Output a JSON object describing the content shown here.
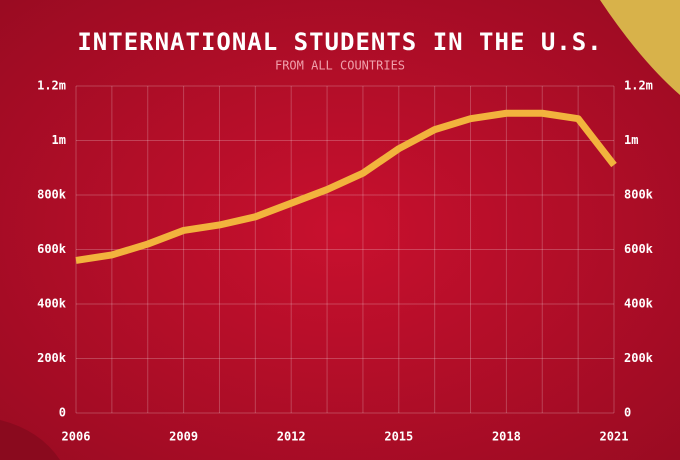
{
  "chart_data": {
    "type": "line",
    "title": "INTERNATIONAL STUDENTS IN THE U.S.",
    "subtitle": "FROM ALL COUNTRIES",
    "x": [
      2006,
      2007,
      2008,
      2009,
      2010,
      2011,
      2012,
      2013,
      2014,
      2015,
      2016,
      2017,
      2018,
      2019,
      2020,
      2021
    ],
    "series": [
      {
        "name": "International students",
        "color": "#f2b33d",
        "values": [
          560000,
          580000,
          620000,
          670000,
          690000,
          720000,
          770000,
          820000,
          880000,
          970000,
          1040000,
          1080000,
          1100000,
          1100000,
          1080000,
          910000
        ]
      }
    ],
    "xlim": [
      2006,
      2021
    ],
    "xticks": [
      2006,
      2009,
      2012,
      2015,
      2018,
      2021
    ],
    "ylim": [
      0,
      1200000
    ],
    "yticks": [
      0,
      {
        "value": 200000,
        "label": "200k"
      },
      {
        "value": 400000,
        "label": "400k"
      },
      {
        "value": 600000,
        "label": "600k"
      },
      {
        "value": 800000,
        "label": "800k"
      },
      {
        "value": 1000000,
        "label": "1m"
      },
      {
        "value": 1200000,
        "label": "1.2m"
      }
    ],
    "grid": true
  }
}
